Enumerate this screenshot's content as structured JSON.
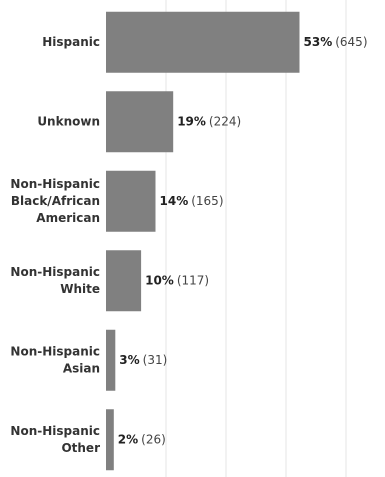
{
  "chart_data": {
    "type": "bar",
    "orientation": "horizontal",
    "categories": [
      "Hispanic",
      "Unknown",
      "Non-Hispanic\nBlack/African\nAmerican",
      "Non-Hispanic\nWhite",
      "Non-Hispanic\nAsian",
      "Non-Hispanic\nOther"
    ],
    "values": [
      645,
      224,
      165,
      117,
      31,
      26
    ],
    "value_labels": [
      "(645)",
      "(224)",
      "(165)",
      "(117)",
      "(31)",
      "(26)"
    ],
    "percent_labels": [
      "53%",
      "19%",
      "14%",
      "10%",
      "3%",
      "2%"
    ],
    "color": "#808080",
    "xlim": [
      0,
      900
    ],
    "xticks": [
      200,
      400,
      600,
      800
    ],
    "grid": true
  }
}
